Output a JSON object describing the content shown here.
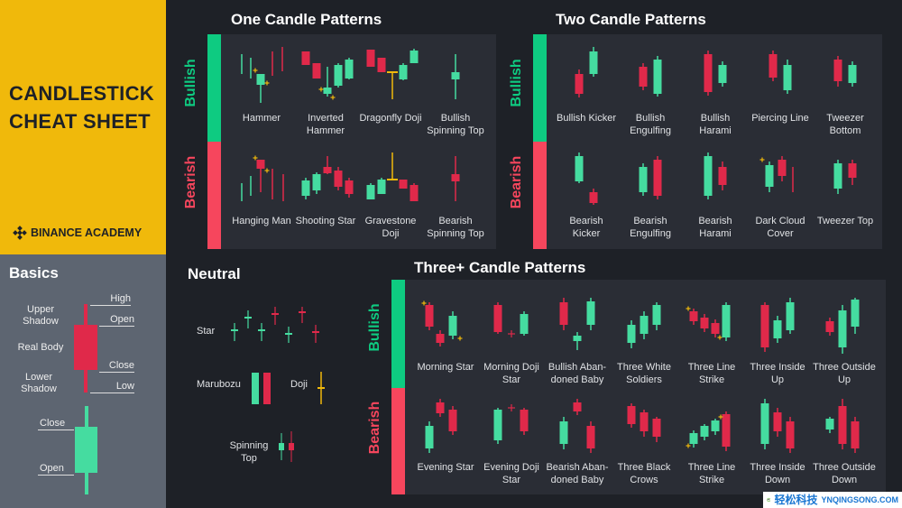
{
  "brand": {
    "title_line1": "CANDLESTICK",
    "title_line2": "CHEAT SHEET",
    "logo_text": "BINANCE ACADEMY",
    "color": "#f0b90b"
  },
  "basics": {
    "title": "Basics",
    "upper_shadow": "Upper Shadow",
    "real_body": "Real Body",
    "lower_shadow": "Lower Shadow",
    "high": "High",
    "open": "Open",
    "close": "Close",
    "low": "Low",
    "bull_close": "Close",
    "bull_open": "Open"
  },
  "colors": {
    "bull": "#45dca0",
    "bear": "#e0294a",
    "bull_bar": "#0ecb81",
    "bear_bar": "#f6465d",
    "doji": "#f0b90b"
  },
  "side_labels": {
    "bullish": "Bullish",
    "bearish": "Bearish"
  },
  "one_candle": {
    "title": "One Candle Patterns",
    "bullish": [
      "Hammer",
      "Inverted Hammer",
      "Dragonfly Doji",
      "Bullish Spinning Top"
    ],
    "bearish": [
      "Hanging Man",
      "Shooting Star",
      "Gravestone Doji",
      "Bearish Spinning Top"
    ]
  },
  "two_candle": {
    "title": "Two Candle Patterns",
    "bullish": [
      "Bullish Kicker",
      "Bullish Engulfing",
      "Bullish Harami",
      "Piercing Line",
      "Tweezer Bottom"
    ],
    "bearish": [
      "Bearish Kicker",
      "Bearish Engulfing",
      "Bearish Harami",
      "Dark Cloud Cover",
      "Tweezer Top"
    ]
  },
  "neutral": {
    "title": "Neutral",
    "star": "Star",
    "marubozu": "Marubozu",
    "doji": "Doji",
    "spinning_top": "Spinning Top"
  },
  "three_candle": {
    "title": "Three+ Candle Patterns",
    "bullish": [
      "Morning Star",
      "Morning Doji Star",
      "Bullish Aban-doned Baby",
      "Three White Soldiers",
      "Three Line Strike",
      "Three Inside Up",
      "Three Outside Up"
    ],
    "bearish": [
      "Evening Star",
      "Evening Doji Star",
      "Bearish Aban-doned Baby",
      "Three Black Crows",
      "Three Line Strike",
      "Three Inside Down",
      "Three Outside Down"
    ]
  },
  "watermark": {
    "text": "轻松科技",
    "url": "YNQINGSONG.COM"
  }
}
